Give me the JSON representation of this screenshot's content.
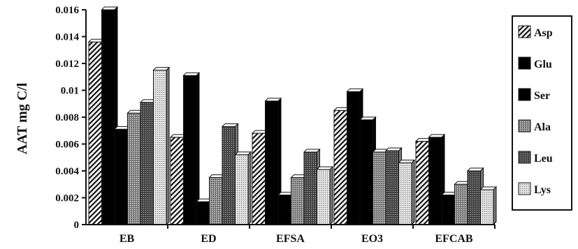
{
  "chart_data": {
    "type": "bar",
    "title": "",
    "xlabel": "",
    "ylabel": "AAT mg C/l",
    "ylim": [
      0,
      0.016
    ],
    "yticks": [
      "0",
      "0.002",
      "0.004",
      "0.006",
      "0.008",
      "0.01",
      "0.012",
      "0.014",
      "0.016"
    ],
    "categories": [
      "EB",
      "ED",
      "EFSA",
      "EO3",
      "EFCAB"
    ],
    "series": [
      {
        "name": "Asp",
        "values": [
          0.0136,
          0.0065,
          0.0068,
          0.0085,
          0.0062
        ],
        "pattern": "hatch"
      },
      {
        "name": "Glu",
        "values": [
          0.016,
          0.0111,
          0.0092,
          0.0099,
          0.0065
        ],
        "pattern": "solid"
      },
      {
        "name": "Ser",
        "values": [
          0.0071,
          0.0017,
          0.0022,
          0.0078,
          0.0022
        ],
        "pattern": "solid"
      },
      {
        "name": "Ala",
        "values": [
          0.0083,
          0.0035,
          0.0035,
          0.0054,
          0.003
        ],
        "pattern": "dots"
      },
      {
        "name": "Leu",
        "values": [
          0.0091,
          0.0073,
          0.0054,
          0.0055,
          0.004
        ],
        "pattern": "dense"
      },
      {
        "name": "Lys",
        "values": [
          0.0115,
          0.0052,
          0.0041,
          0.0046,
          0.0026
        ],
        "pattern": "light"
      }
    ],
    "grid": false,
    "legend_position": "right"
  }
}
